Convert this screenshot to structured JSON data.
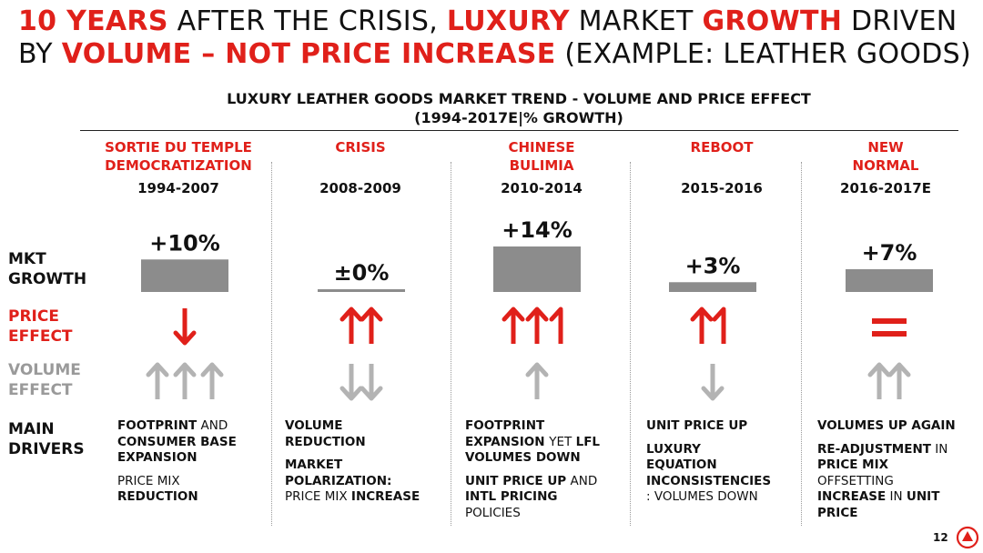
{
  "title": {
    "line1_a": "10 YEARS",
    "line1_b": " AFTER THE CRISIS, ",
    "line1_c": "LUXURY",
    "line1_d": " MARKET ",
    "line1_e": "GROWTH",
    "line1_f": " DRIVEN",
    "line2_a": "BY ",
    "line2_b": "VOLUME – NOT PRICE INCREASE",
    "line2_c": " (EXAMPLE: LEATHER GOODS)"
  },
  "colors": {
    "accent": "#e0201a",
    "bar": "#8c8c8c",
    "volume_arrow": "#b3b3b3"
  },
  "row_labels": {
    "mkt_growth": [
      "MKT",
      "GROWTH"
    ],
    "price_effect": [
      "PRICE",
      "EFFECT"
    ],
    "volume_effect": [
      "VOLUME",
      "EFFECT"
    ],
    "main_drivers": [
      "MAIN",
      "DRIVERS"
    ]
  },
  "chart_data": {
    "type": "bar",
    "title": "LUXURY LEATHER GOODS MARKET TREND - VOLUME AND PRICE EFFECT",
    "subtitle": "(1994-2017E|% GROWTH)",
    "categories": [
      "1994-2007",
      "2008-2009",
      "2010-2014",
      "2015-2016",
      "2016-2017E"
    ],
    "phases": [
      [
        "SORTIE DU TEMPLE",
        "DEMOCRATIZATION"
      ],
      [
        "CRISIS",
        ""
      ],
      [
        "CHINESE",
        "BULIMIA"
      ],
      [
        "REBOOT",
        ""
      ],
      [
        "NEW",
        "NORMAL"
      ]
    ],
    "values": [
      10,
      0,
      14,
      3,
      7
    ],
    "value_labels": [
      "+10%",
      "±0%",
      "+14%",
      "+3%",
      "+7%"
    ],
    "ylabel": "MKT GROWTH",
    "ylim": [
      0,
      14
    ],
    "price_effect": [
      "down",
      "up-up",
      "up-up-single",
      "up-single",
      "equal"
    ],
    "volume_effect": [
      "up-up-up",
      "down-down",
      "up",
      "down",
      "up-up"
    ]
  },
  "drivers": [
    [
      [
        [
          "FOOTPRINT",
          true
        ],
        [
          " AND",
          false
        ],
        [
          "CONSUMER BASE",
          true
        ],
        [
          "EXPANSION",
          true
        ]
      ],
      [
        [
          "PRICE MIX",
          false
        ],
        [
          "REDUCTION",
          true
        ]
      ]
    ],
    [
      [
        [
          "VOLUME",
          true
        ],
        [
          "REDUCTION",
          true
        ]
      ],
      [
        [
          "MARKET",
          true
        ],
        [
          "POLARIZATION:",
          true
        ],
        [
          "PRICE MIX ",
          false
        ],
        [
          "INCREASE",
          true
        ]
      ]
    ],
    [
      [
        [
          "FOOTPRINT",
          true
        ],
        [
          "EXPANSION ",
          true
        ],
        [
          "YET ",
          false
        ],
        [
          "LFL",
          true
        ],
        [
          "VOLUMES DOWN",
          true
        ]
      ],
      [
        [
          "UNIT PRICE UP",
          true
        ],
        [
          " AND",
          false
        ],
        [
          "INTL PRICING",
          true
        ],
        [
          "POLICIES",
          false
        ]
      ]
    ],
    [
      [
        [
          "UNIT PRICE UP",
          true
        ]
      ],
      [
        [
          "LUXURY",
          true
        ],
        [
          "EQUATION",
          true
        ],
        [
          "INCONSISTENCIES",
          true
        ],
        [
          ": VOLUMES DOWN",
          false
        ]
      ]
    ],
    [
      [
        [
          "VOLUMES UP AGAIN",
          true
        ]
      ],
      [
        [
          "RE-ADJUSTMENT",
          true
        ],
        [
          " IN",
          false
        ],
        [
          "PRICE MIX",
          true
        ],
        [
          "OFFSETTING",
          false
        ],
        [
          "INCREASE",
          true
        ],
        [
          " IN ",
          false
        ],
        [
          "UNIT",
          true
        ],
        [
          "PRICE",
          true
        ]
      ]
    ]
  ],
  "page_number": "12"
}
